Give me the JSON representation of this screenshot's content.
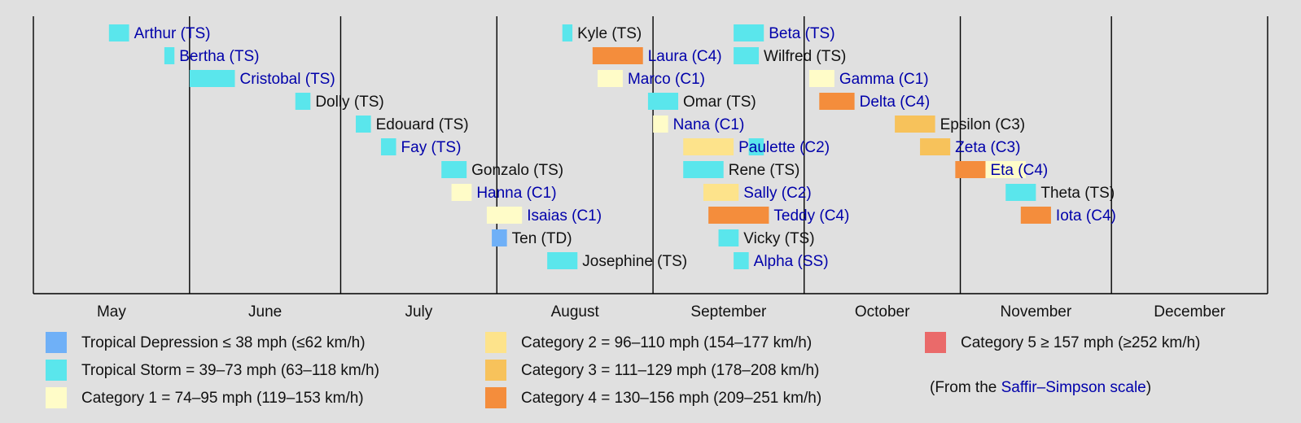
{
  "colors": {
    "background": "#e0e0e0",
    "axis": "#000000",
    "link_text": "#0000aa",
    "plain_text": "#111111"
  },
  "chart_data": {
    "type": "timeline",
    "months": [
      "May",
      "June",
      "July",
      "August",
      "September",
      "October",
      "November",
      "December"
    ],
    "month_days": [
      31,
      30,
      31,
      31,
      30,
      31,
      30,
      31
    ],
    "category_colors": {
      "TD": "#6fb0f7",
      "SS": "#5ae6ec",
      "TS": "#5ae6ec",
      "C1": "#fffcc8",
      "C2": "#fde38b",
      "C3": "#f7c25b",
      "C4": "#f48d3c",
      "C5": "#ea6a6a"
    },
    "storms": [
      {
        "name": "Arthur",
        "label": "Arthur (TS)",
        "cat": "TS",
        "link": true,
        "row": 0,
        "start": "05-16",
        "end": "05-19"
      },
      {
        "name": "Bertha",
        "label": "Bertha (TS)",
        "cat": "TS",
        "link": true,
        "row": 1,
        "start": "05-27",
        "end": "05-28"
      },
      {
        "name": "Cristobal",
        "label": "Cristobal (TS)",
        "cat": "TS",
        "link": true,
        "row": 2,
        "start": "06-01",
        "end": "06-09"
      },
      {
        "name": "Dolly",
        "label": "Dolly (TS)",
        "cat": "TS",
        "link": false,
        "row": 3,
        "start": "06-22",
        "end": "06-24"
      },
      {
        "name": "Edouard",
        "label": "Edouard (TS)",
        "cat": "TS",
        "link": false,
        "row": 4,
        "start": "07-04",
        "end": "07-06"
      },
      {
        "name": "Fay",
        "label": "Fay (TS)",
        "cat": "TS",
        "link": true,
        "row": 5,
        "start": "07-09",
        "end": "07-11"
      },
      {
        "name": "Gonzalo",
        "label": "Gonzalo (TS)",
        "cat": "TS",
        "link": false,
        "row": 6,
        "start": "07-21",
        "end": "07-25"
      },
      {
        "name": "Hanna",
        "label": "Hanna (C1)",
        "cat": "C1",
        "link": true,
        "row": 7,
        "start": "07-23",
        "end": "07-26"
      },
      {
        "name": "Isaias",
        "label": "Isaias (C1)",
        "cat": "C1",
        "link": true,
        "row": 8,
        "start": "07-30",
        "end": "08-05"
      },
      {
        "name": "Ten",
        "label": "Ten (TD)",
        "cat": "TD",
        "link": false,
        "row": 9,
        "start": "07-31",
        "end": "08-02"
      },
      {
        "name": "Josephine",
        "label": "Josephine (TS)",
        "cat": "TS",
        "link": false,
        "row": 10,
        "start": "08-11",
        "end": "08-16"
      },
      {
        "name": "Kyle",
        "label": "Kyle (TS)",
        "cat": "TS",
        "link": false,
        "row": 0,
        "start": "08-14",
        "end": "08-15"
      },
      {
        "name": "Laura",
        "label": "Laura (C4)",
        "cat": "C4",
        "link": true,
        "row": 1,
        "start": "08-20",
        "end": "08-29"
      },
      {
        "name": "Marco",
        "label": "Marco (C1)",
        "cat": "C1",
        "link": true,
        "row": 2,
        "start": "08-21",
        "end": "08-25"
      },
      {
        "name": "Omar",
        "label": "Omar (TS)",
        "cat": "TS",
        "link": false,
        "row": 3,
        "start": "08-31",
        "end": "09-05"
      },
      {
        "name": "Nana",
        "label": "Nana (C1)",
        "cat": "C1",
        "link": true,
        "row": 4,
        "start": "09-01",
        "end": "09-03"
      },
      {
        "name": "Paulette",
        "label": "Paulette (C2)",
        "cat": "C2",
        "link": true,
        "row": 5,
        "start": "09-07",
        "end": "09-16"
      },
      {
        "name": "Paulette-regen",
        "label": "",
        "cat": "TS",
        "link": true,
        "row": 5,
        "start": "09-20",
        "end": "09-22"
      },
      {
        "name": "Rene",
        "label": "Rene (TS)",
        "cat": "TS",
        "link": false,
        "row": 6,
        "start": "09-07",
        "end": "09-14"
      },
      {
        "name": "Sally",
        "label": "Sally (C2)",
        "cat": "C2",
        "link": true,
        "row": 7,
        "start": "09-11",
        "end": "09-17"
      },
      {
        "name": "Teddy",
        "label": "Teddy (C4)",
        "cat": "C4",
        "link": true,
        "row": 8,
        "start": "09-12",
        "end": "09-23"
      },
      {
        "name": "Vicky",
        "label": "Vicky (TS)",
        "cat": "TS",
        "link": false,
        "row": 9,
        "start": "09-14",
        "end": "09-17"
      },
      {
        "name": "Alpha",
        "label": "Alpha (SS)",
        "cat": "SS",
        "link": true,
        "row": 10,
        "start": "09-17",
        "end": "09-19"
      },
      {
        "name": "Beta",
        "label": "Beta (TS)",
        "cat": "TS",
        "link": true,
        "row": 0,
        "start": "09-17",
        "end": "09-22"
      },
      {
        "name": "Wilfred",
        "label": "Wilfred (TS)",
        "cat": "TS",
        "link": false,
        "row": 1,
        "start": "09-17",
        "end": "09-21"
      },
      {
        "name": "Gamma",
        "label": "Gamma (C1)",
        "cat": "C1",
        "link": true,
        "row": 2,
        "start": "10-02",
        "end": "10-06"
      },
      {
        "name": "Delta",
        "label": "Delta (C4)",
        "cat": "C4",
        "link": true,
        "row": 3,
        "start": "10-04",
        "end": "10-10"
      },
      {
        "name": "Epsilon",
        "label": "Epsilon (C3)",
        "cat": "C3",
        "link": false,
        "row": 4,
        "start": "10-19",
        "end": "10-26"
      },
      {
        "name": "Zeta",
        "label": "Zeta (C3)",
        "cat": "C3",
        "link": true,
        "row": 5,
        "start": "10-24",
        "end": "10-29"
      },
      {
        "name": "Eta",
        "label": "Eta (C4)",
        "cat": "C4",
        "link": true,
        "row": 6,
        "start": "10-31",
        "end": "11-05"
      },
      {
        "name": "Eta-regen",
        "label": "",
        "cat": "C1",
        "link": true,
        "row": 6,
        "start": "11-06",
        "end": "11-13"
      },
      {
        "name": "Theta",
        "label": "Theta (TS)",
        "cat": "TS",
        "link": false,
        "row": 7,
        "start": "11-10",
        "end": "11-15"
      },
      {
        "name": "Iota",
        "label": "Iota (C4)",
        "cat": "C4",
        "link": true,
        "row": 8,
        "start": "11-13",
        "end": "11-18"
      }
    ]
  },
  "legend": [
    {
      "cat": "TD",
      "text": "Tropical Depression ≤ 38 mph (≤62 km/h)"
    },
    {
      "cat": "TS",
      "text": "Tropical Storm = 39–73 mph (63–118 km/h)"
    },
    {
      "cat": "C1",
      "text": "Category 1 = 74–95 mph (119–153 km/h)"
    },
    {
      "cat": "C2",
      "text": "Category 2 = 96–110 mph (154–177 km/h)"
    },
    {
      "cat": "C3",
      "text": "Category 3 = 111–129 mph (178–208 km/h)"
    },
    {
      "cat": "C4",
      "text": "Category 4 = 130–156 mph (209–251 km/h)"
    },
    {
      "cat": "C5",
      "text": "Category 5 ≥ 157 mph (≥252 km/h)"
    }
  ],
  "source_note": {
    "prefix": "(From the ",
    "link": "Saffir–Simpson scale",
    "suffix": ")"
  }
}
